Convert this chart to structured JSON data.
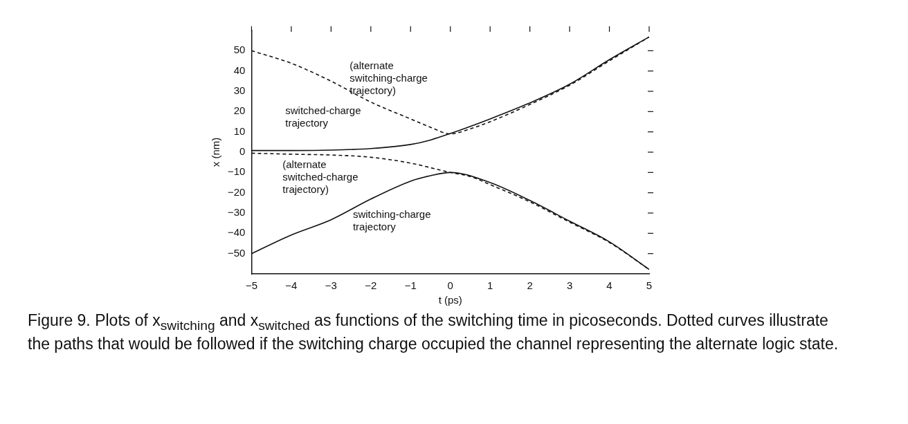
{
  "chart_data": {
    "type": "line",
    "xlabel": "t (ps)",
    "ylabel": "x (nm)",
    "xlim": [
      -5,
      5
    ],
    "xticks": [
      -5,
      -4,
      -3,
      -2,
      -1,
      0,
      1,
      2,
      3,
      4,
      5
    ],
    "ylim": [
      -60,
      60
    ],
    "yticks": [
      -50,
      -40,
      -30,
      -20,
      -10,
      0,
      10,
      20,
      30,
      40,
      50
    ],
    "grid": false,
    "legend": false,
    "marker": "none",
    "series": [
      {
        "color": "#111111",
        "line_style": "solid",
        "x": [
          -5,
          -4,
          -3,
          -2,
          -1,
          -0.5,
          0,
          1,
          2,
          3,
          4,
          5
        ],
        "values": [
          0.8,
          0.8,
          1,
          1.8,
          3.8,
          6,
          9.2,
          16.4,
          24.3,
          33.5,
          45.6,
          56.8
        ]
      },
      {
        "color": "#111111",
        "line_style": "dashed",
        "x": [
          -5,
          -4,
          -3,
          -2,
          -1,
          -0.5,
          0,
          0.5,
          1,
          2,
          3,
          4,
          5
        ],
        "values": [
          50,
          43.8,
          35,
          24.7,
          16.4,
          12.3,
          9,
          11.5,
          15,
          23.5,
          33,
          45,
          56.8
        ]
      },
      {
        "color": "#111111",
        "line_style": "solid",
        "x": [
          -5,
          -4,
          -3,
          -2,
          -1,
          -0.5,
          0,
          1,
          2,
          3,
          4,
          5
        ],
        "values": [
          -50,
          -40.8,
          -33.3,
          -23.1,
          -14.3,
          -11.6,
          -10,
          -15,
          -23.8,
          -34,
          -44.2,
          -57.8
        ]
      },
      {
        "color": "#111111",
        "line_style": "dashed",
        "x": [
          -5,
          -4,
          -3,
          -2,
          -1,
          0,
          0.5,
          1,
          2,
          3,
          4,
          5
        ],
        "values": [
          -0.5,
          -1,
          -1.4,
          -2.5,
          -5.4,
          -10,
          -12,
          -16,
          -24.5,
          -34.5,
          -44.5,
          -57.8
        ]
      }
    ],
    "annotations": [
      "(alternate\nswitching-charge\ntrajectory)",
      "switched-charge\ntrajectory",
      "(alternate\nswitched-charge\ntrajectory)",
      "switching-charge\ntrajectory",
      "Figure 9.  Plots of x$_{switching}$ and x$_{switched}$ as functions of the switching time in picoseconds. Dotted curves illustrate the paths that would be followed if the switching charge occupied the channel representing the alternate logic state."
    ]
  }
}
